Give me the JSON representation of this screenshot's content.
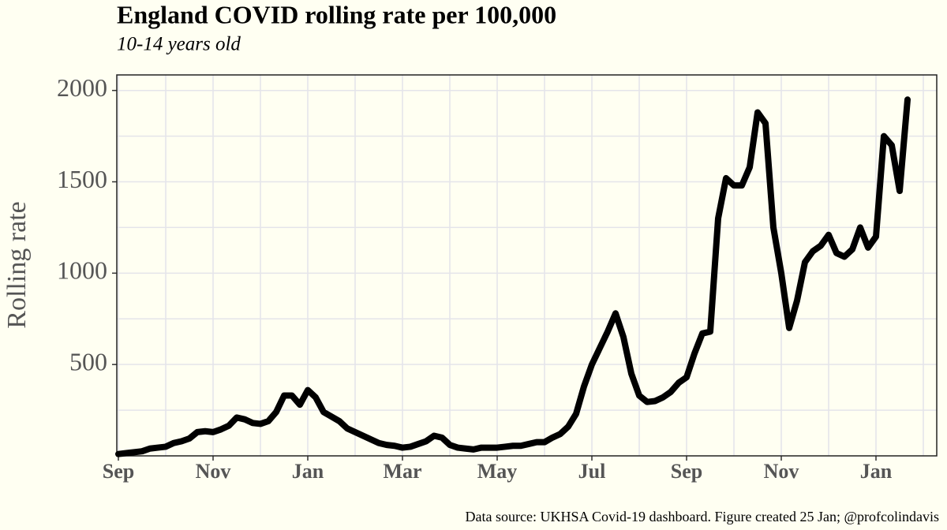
{
  "chart_data": {
    "type": "line",
    "title": "England  COVID rolling rate per 100,000",
    "subtitle": "10-14 years old",
    "y_label": "Rolling rate",
    "source": "Data source: UKHSA Covid-19 dashboard. Figure created 25 Jan; @profcolindavis",
    "categories": [
      "Sep",
      null,
      null,
      null,
      null,
      null,
      null,
      null,
      null,
      null,
      null,
      null,
      "Nov",
      null,
      null,
      null,
      null,
      null,
      null,
      null,
      null,
      null,
      null,
      null,
      "Jan",
      null,
      null,
      null,
      null,
      null,
      null,
      null,
      null,
      null,
      null,
      null,
      "Mar",
      null,
      null,
      null,
      null,
      null,
      null,
      null,
      null,
      null,
      null,
      null,
      "May",
      null,
      null,
      null,
      null,
      null,
      null,
      null,
      null,
      null,
      null,
      null,
      "Jul",
      null,
      null,
      null,
      null,
      null,
      null,
      null,
      null,
      null,
      null,
      null,
      "Sep",
      null,
      null,
      null,
      null,
      null,
      null,
      null,
      null,
      null,
      null,
      null,
      "Nov",
      null,
      null,
      null,
      null,
      null,
      null,
      null,
      null,
      null,
      null,
      null,
      "Jan",
      null,
      null,
      null,
      null
    ],
    "series": [
      {
        "name": "Rolling rate",
        "color": "#000000",
        "values": [
          10,
          15,
          20,
          25,
          40,
          45,
          50,
          70,
          80,
          95,
          130,
          135,
          130,
          145,
          165,
          210,
          200,
          180,
          175,
          190,
          240,
          330,
          330,
          280,
          360,
          320,
          240,
          215,
          190,
          150,
          130,
          110,
          90,
          70,
          60,
          55,
          45,
          50,
          65,
          80,
          110,
          100,
          60,
          45,
          40,
          35,
          45,
          45,
          45,
          50,
          55,
          55,
          65,
          75,
          75,
          100,
          120,
          160,
          230,
          380,
          500,
          590,
          680,
          780,
          650,
          450,
          330,
          295,
          300,
          320,
          350,
          400,
          430,
          560,
          670,
          680,
          1300,
          1520,
          1480,
          1480,
          1580,
          1880,
          1820,
          1250,
          1000,
          700,
          850,
          1060,
          1120,
          1150,
          1210,
          1110,
          1090,
          1130,
          1250,
          1140,
          1200,
          1750,
          1700,
          1450,
          1950
        ]
      }
    ],
    "ylim": [
      0,
      2085
    ],
    "yticks": [
      500,
      1000,
      1500,
      2000
    ],
    "grid": true
  }
}
